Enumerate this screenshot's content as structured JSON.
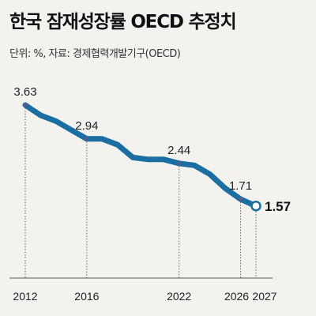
{
  "chart_data": {
    "type": "line",
    "title": "한국 잠재성장률 OECD 추정치",
    "subtitle": "단위: %, 자료: 경제협력개발기구(OECD)",
    "x": [
      2012,
      2013,
      2014,
      2015,
      2016,
      2017,
      2018,
      2019,
      2020,
      2021,
      2022,
      2023,
      2024,
      2025,
      2026,
      2027
    ],
    "values": [
      3.63,
      3.42,
      3.3,
      3.12,
      2.94,
      2.94,
      2.82,
      2.56,
      2.52,
      2.52,
      2.44,
      2.4,
      2.22,
      1.93,
      1.71,
      1.57
    ],
    "tick_labels": [
      "2012",
      "2016",
      "2022",
      "2026",
      "2027"
    ],
    "ticks": [
      2012,
      2016,
      2022,
      2026,
      2027
    ],
    "labeled_points": [
      {
        "year": 2012,
        "text": "3.63"
      },
      {
        "year": 2016,
        "text": "2.94"
      },
      {
        "year": 2022,
        "text": "2.44"
      },
      {
        "year": 2026,
        "text": "1.71"
      },
      {
        "year": 2027,
        "text": "1.57"
      }
    ],
    "xlim": [
      2012,
      2027
    ],
    "ylim": [
      0.1,
      4.0
    ],
    "line_color": "#1a6ea1",
    "background": "#f3f2ee",
    "grid": false
  }
}
